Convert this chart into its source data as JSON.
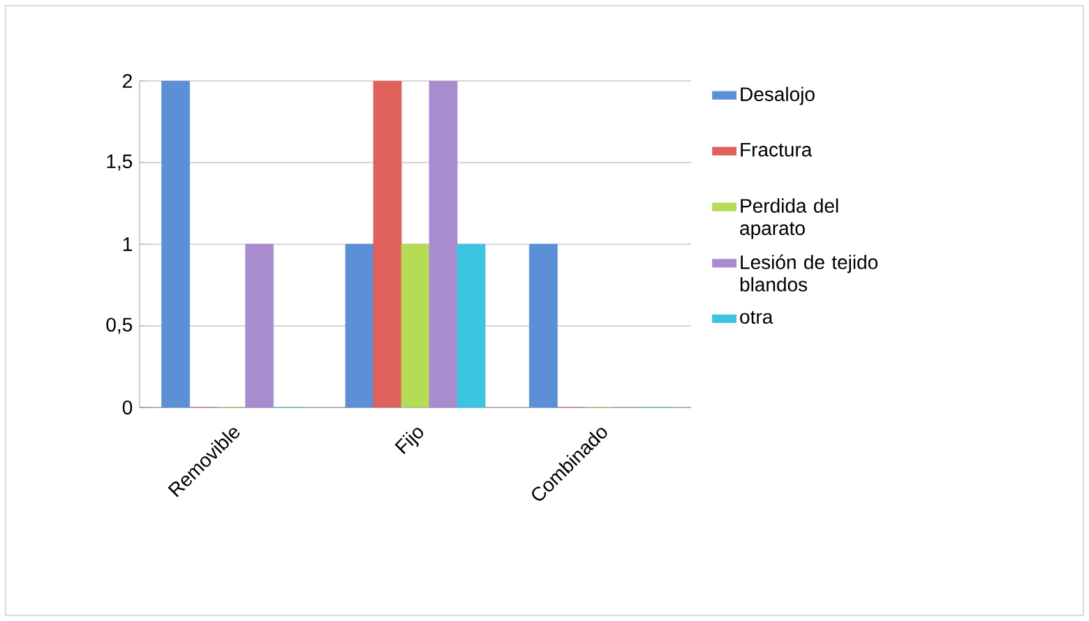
{
  "chart_data": {
    "type": "bar",
    "categories": [
      "Removible",
      "Fijo",
      "Combinado"
    ],
    "series": [
      {
        "name": "Desalojo",
        "color": "#5b8fd6",
        "values": [
          2,
          1,
          1
        ]
      },
      {
        "name": "Fractura",
        "color": "#e0605c",
        "values": [
          0,
          2,
          0
        ]
      },
      {
        "name": "Perdida del aparato",
        "color": "#b5dc55",
        "values": [
          0,
          1,
          0
        ]
      },
      {
        "name": "Lesión de tejido blandos",
        "color": "#a88ccf",
        "values": [
          1,
          2,
          0
        ]
      },
      {
        "name": "otra",
        "color": "#3cc4e0",
        "values": [
          0,
          1,
          0
        ]
      }
    ],
    "ylim": [
      0,
      2
    ],
    "yticks": [
      0,
      {
        "value": 0.5,
        "label": "0,5"
      },
      1,
      {
        "value": 1.5,
        "label": "1,5"
      },
      2
    ],
    "grid": "y",
    "legend": "right"
  }
}
